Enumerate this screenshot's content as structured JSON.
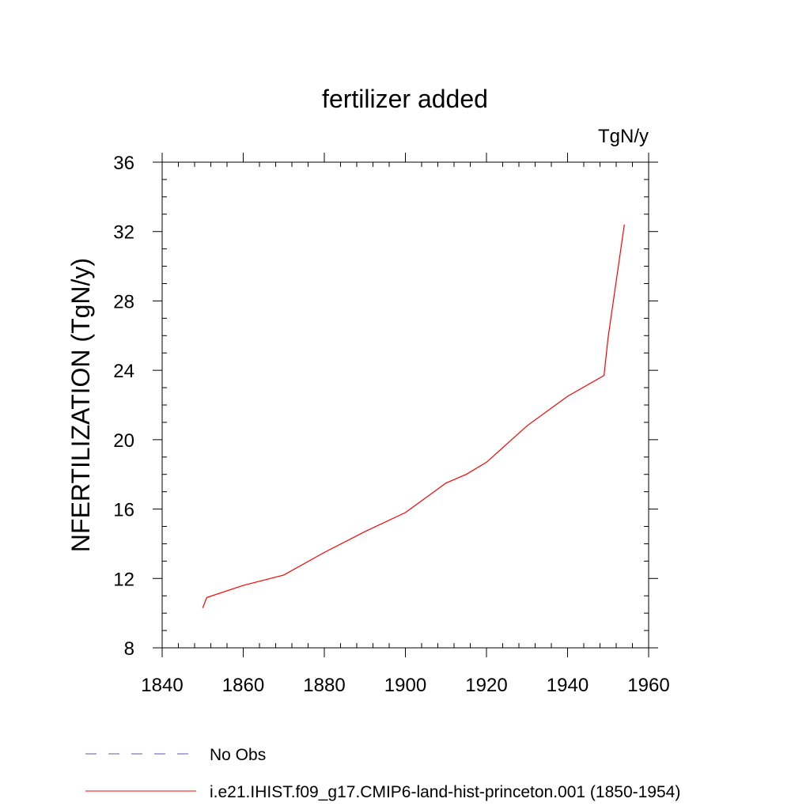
{
  "chart_data": {
    "type": "line",
    "title": "fertilizer added",
    "units_label": "TgN/y",
    "ylabel": "NFERTILIZATION  (TgN/y)",
    "xlabel": "",
    "xlim": [
      1840,
      1960
    ],
    "ylim": [
      8,
      36
    ],
    "x_ticks": [
      1840,
      1860,
      1880,
      1900,
      1920,
      1940,
      1960
    ],
    "y_ticks": [
      8,
      12,
      16,
      20,
      24,
      28,
      32,
      36
    ],
    "x_tick_labels": [
      "1840",
      "1860",
      "1880",
      "1900",
      "1920",
      "1940",
      "1960"
    ],
    "y_tick_labels": [
      "8",
      "12",
      "16",
      "20",
      "24",
      "28",
      "32",
      "36"
    ],
    "grid": false,
    "legend_position": "bottom",
    "series": [
      {
        "name": "i.e21.IHIST.f09_g17.CMIP6-land-hist-princeton.001 (1850-1954)",
        "color": "#ff0000",
        "style": "solid",
        "x": [
          1850,
          1851,
          1860,
          1870,
          1880,
          1890,
          1900,
          1910,
          1915,
          1920,
          1930,
          1940,
          1949,
          1950,
          1954
        ],
        "y": [
          10.3,
          10.9,
          11.6,
          12.2,
          13.5,
          14.7,
          15.8,
          17.5,
          18.0,
          18.7,
          20.8,
          22.5,
          23.7,
          25.9,
          32.4
        ]
      }
    ],
    "legend": [
      {
        "label": "No Obs",
        "color": "#5b5bb0",
        "style": "dashed"
      },
      {
        "label": "i.e21.IHIST.f09_g17.CMIP6-land-hist-princeton.001 (1850-1954)",
        "color": "#ff0000",
        "style": "solid"
      }
    ]
  }
}
